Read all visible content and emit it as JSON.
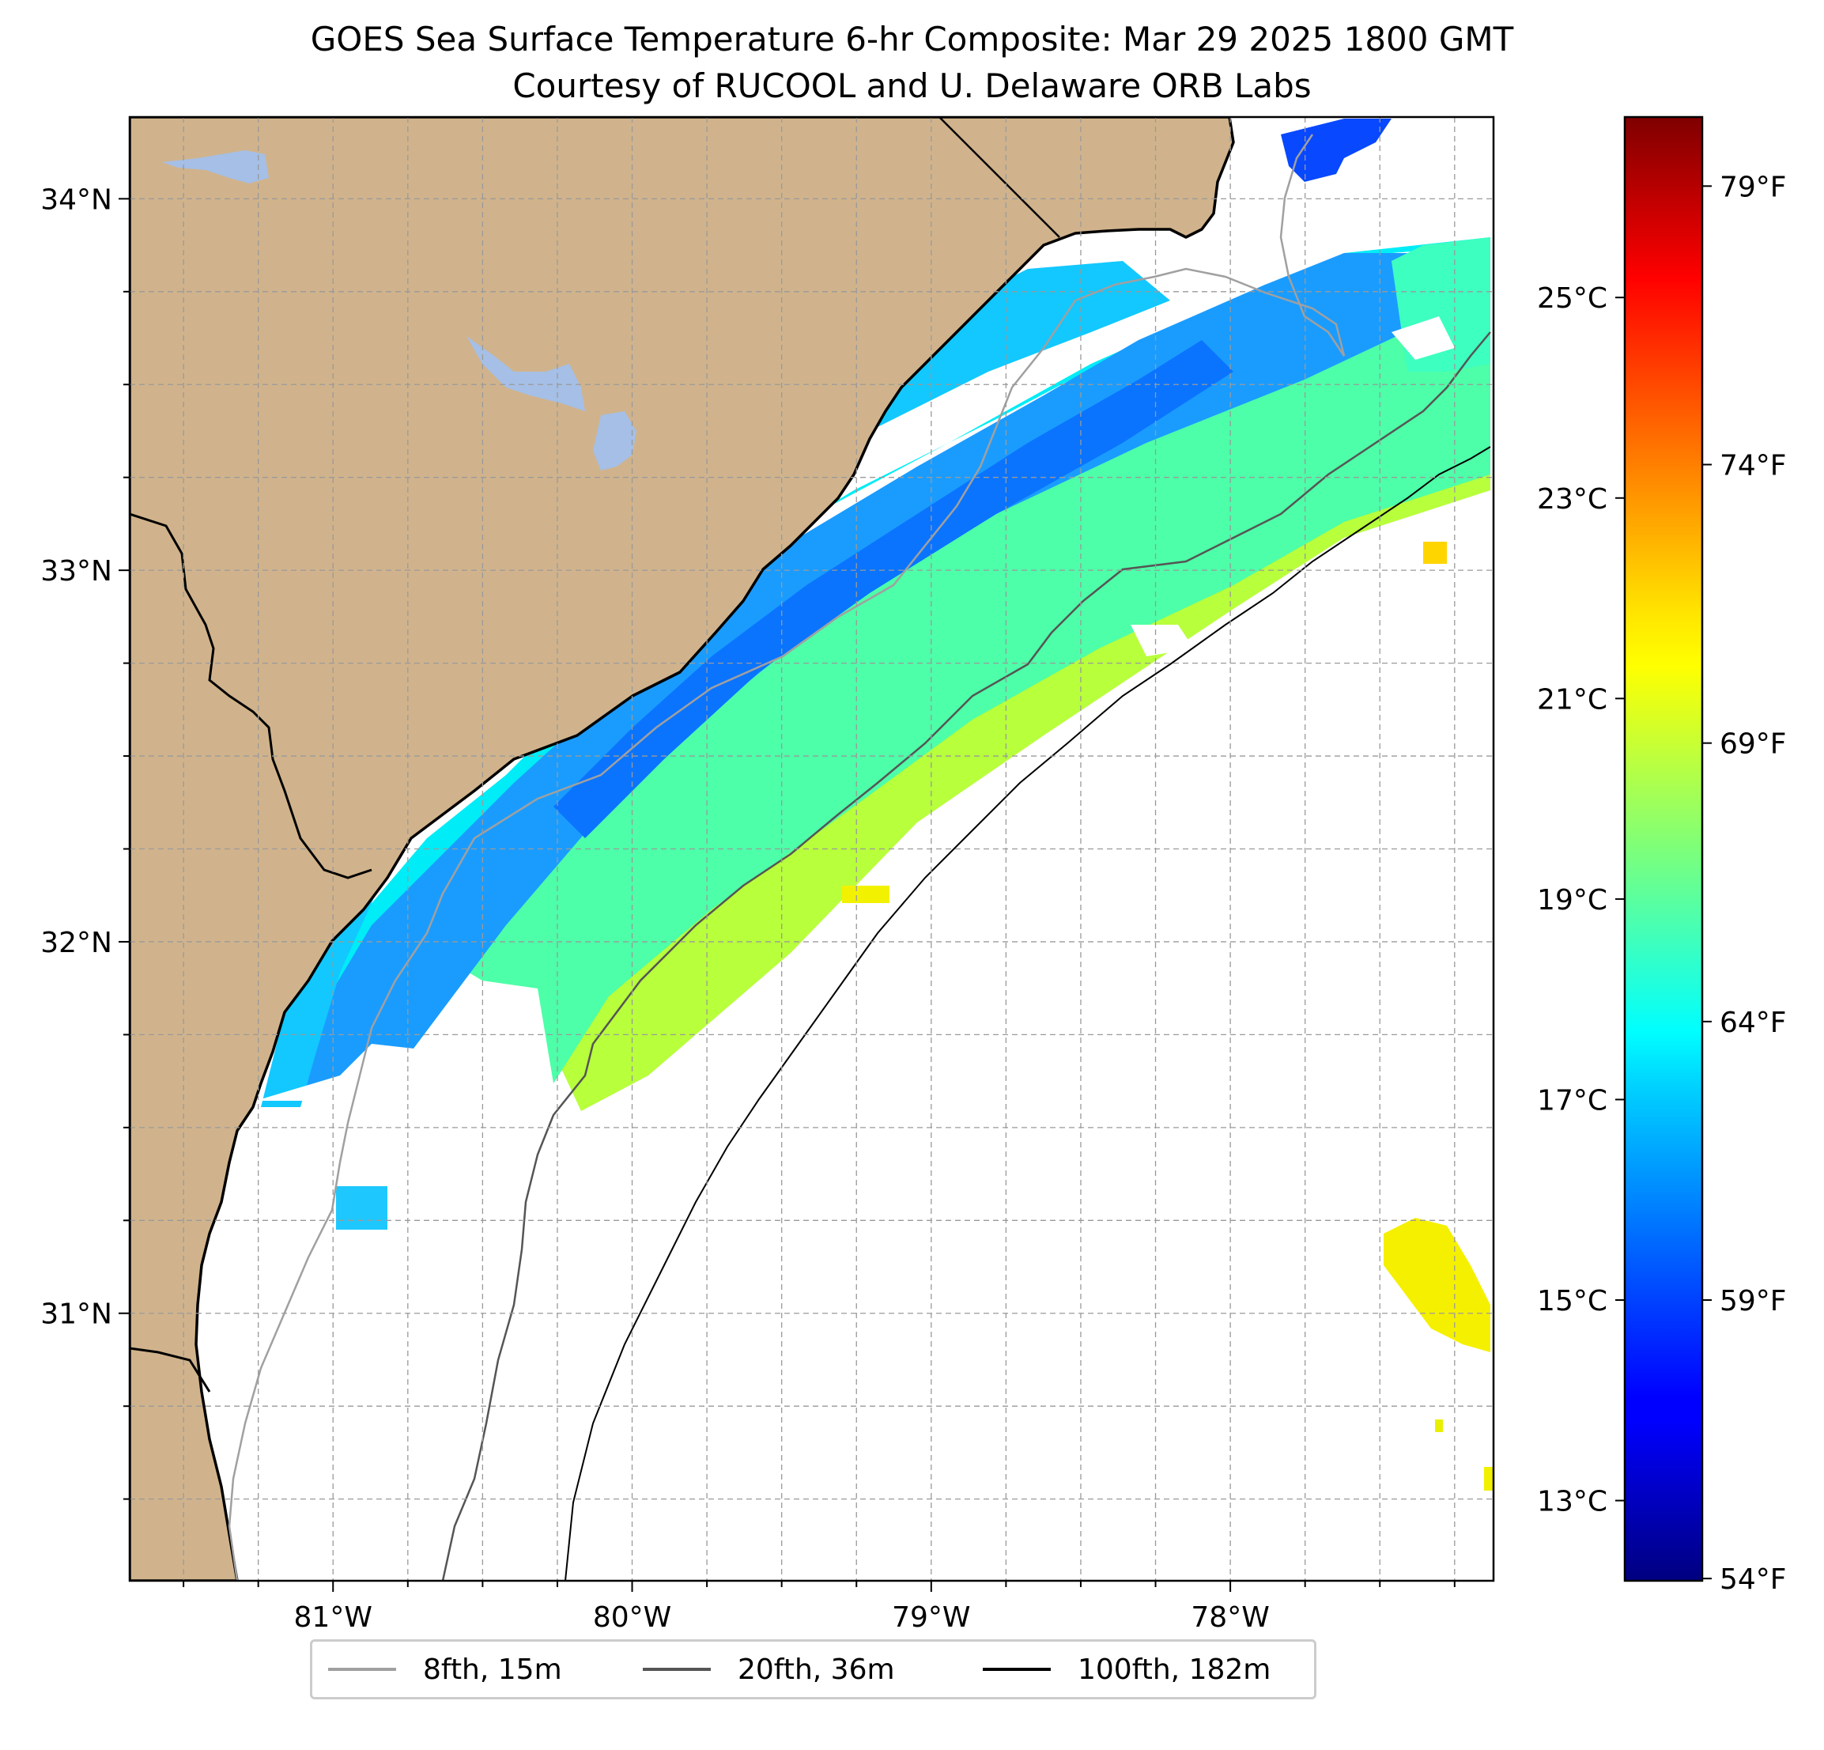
{
  "title": {
    "line1": "GOES Sea Surface Temperature 6-hr Composite: Mar 29 2025 1800 GMT",
    "line2": "Courtesy of RUCOOL and U. Delaware ORB Labs"
  },
  "map": {
    "lon_range": [
      -81.68,
      -77.12
    ],
    "lat_range": [
      30.28,
      34.22
    ],
    "lon_ticks": [
      "81°W",
      "80°W",
      "79°W",
      "78°W"
    ],
    "lon_tick_values": [
      -81,
      -80,
      -79,
      -78
    ],
    "lat_ticks": [
      "34°N",
      "33°N",
      "32°N",
      "31°N"
    ],
    "lat_tick_values": [
      34,
      33,
      32,
      31
    ],
    "land_color": "#d0b38c",
    "lake_color": "#a5bfe6",
    "grid": "dashed"
  },
  "colorbar": {
    "celsius_ticks": [
      "25°C",
      "23°C",
      "21°C",
      "19°C",
      "17°C",
      "15°C",
      "13°C"
    ],
    "celsius_values": [
      25,
      23,
      21,
      19,
      17,
      15,
      13
    ],
    "fahrenheit_ticks": [
      "79°F",
      "74°F",
      "69°F",
      "64°F",
      "59°F",
      "54°F"
    ],
    "fahrenheit_values": [
      79,
      74,
      69,
      64,
      59,
      54
    ],
    "range_celsius": [
      12.2,
      26.8
    ],
    "colormap": "jet"
  },
  "legend": {
    "items": [
      {
        "label": "8fth, 15m",
        "color": "#a0a0a0"
      },
      {
        "label": "20fth, 36m",
        "color": "#555555"
      },
      {
        "label": "100fth, 182m",
        "color": "#000000"
      }
    ]
  }
}
